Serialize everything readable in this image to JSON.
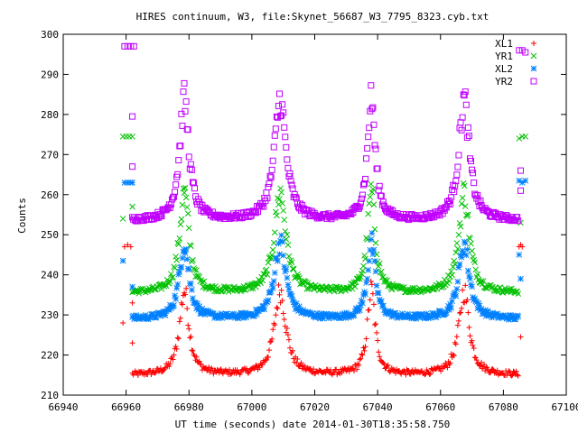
{
  "chart_data": {
    "type": "scatter",
    "title": "HIRES continuum, W3, file:Skynet_56687_W3_7795_8323.cyb.txt",
    "xlabel": "UT time (seconds) date 2014-01-30T18:35:58.750",
    "ylabel": "Counts",
    "xlim": [
      66940,
      67100
    ],
    "ylim": [
      210,
      300
    ],
    "xticks": [
      66940,
      66960,
      66980,
      67000,
      67020,
      67040,
      67060,
      67080,
      67100
    ],
    "yticks": [
      210,
      220,
      230,
      240,
      250,
      260,
      270,
      280,
      290,
      300
    ],
    "xtick_labels": [
      "66940",
      "66960",
      "66980",
      "67000",
      "67020",
      "67040",
      "67060",
      "67080",
      "67100"
    ],
    "ytick_labels": [
      "210",
      "220",
      "230",
      "240",
      "250",
      "260",
      "270",
      "280",
      "290",
      "300"
    ],
    "grid": false,
    "legend_position": "top-right",
    "x_range_main": [
      66962,
      67085
    ],
    "peak_times": [
      66978.5,
      67009,
      67038,
      67067.5
    ],
    "peak_halfwidths": [
      1.8,
      2.2,
      1.5,
      2.0
    ],
    "series": [
      {
        "name": "XL1",
        "marker": "plus",
        "color": "#ff0000",
        "baseline": 215,
        "peak_height": 21,
        "start_points": [
          [
            66959,
            228
          ],
          [
            66959.5,
            247
          ],
          [
            66960.5,
            247.5
          ],
          [
            66961.5,
            247
          ],
          [
            66962,
            233
          ],
          [
            66962,
            223
          ]
        ],
        "end_points": [
          [
            67085,
            247
          ],
          [
            67085.5,
            247.5
          ],
          [
            67086,
            247
          ],
          [
            67085.5,
            224.5
          ]
        ]
      },
      {
        "name": "YR1",
        "marker": "cross",
        "color": "#00c000",
        "baseline": 235.5,
        "peak_height": 25,
        "start_points": [
          [
            66959,
            254
          ],
          [
            66959,
            274.5
          ],
          [
            66960,
            274.5
          ],
          [
            66961,
            274.5
          ],
          [
            66962,
            274.5
          ],
          [
            66962,
            257
          ]
        ],
        "end_points": [
          [
            67085,
            274
          ],
          [
            67086,
            274.5
          ],
          [
            67087,
            274.5
          ],
          [
            67085.5,
            253
          ]
        ]
      },
      {
        "name": "XL2",
        "marker": "star",
        "color": "#0080ff",
        "baseline": 229,
        "peak_height": 19,
        "start_points": [
          [
            66959,
            243.5
          ],
          [
            66959.5,
            263
          ],
          [
            66960.5,
            263
          ],
          [
            66961.5,
            263
          ],
          [
            66962,
            263
          ],
          [
            66962,
            237
          ]
        ],
        "end_points": [
          [
            67085,
            263.5
          ],
          [
            67086,
            263
          ],
          [
            67087,
            263.5
          ],
          [
            67085.5,
            239
          ],
          [
            67085,
            245
          ]
        ]
      },
      {
        "name": "YR2",
        "marker": "box",
        "color": "#c000ff",
        "baseline": 253.5,
        "peak_height": 30,
        "start_points": [
          [
            66959.5,
            297
          ],
          [
            66960.5,
            297
          ],
          [
            66961.5,
            297
          ],
          [
            66962.5,
            297
          ],
          [
            66962,
            279.5
          ],
          [
            66962,
            267
          ]
        ],
        "end_points": [
          [
            67085,
            296
          ],
          [
            67086,
            296
          ],
          [
            67087,
            295.5
          ],
          [
            67085.5,
            266
          ],
          [
            67085.5,
            261
          ]
        ]
      }
    ]
  }
}
